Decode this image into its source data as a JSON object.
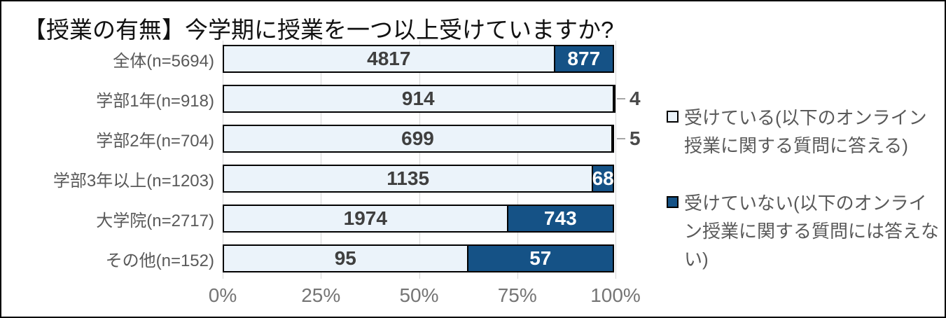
{
  "title": "【授業の有無】今学期に授業を一つ以上受けていますか?",
  "colors": {
    "light_fill": "#EBF3FA",
    "dark_fill": "#155286",
    "segment_border": "#000000",
    "gridline": "#D6D6D6",
    "category_text": "#595959",
    "axis_text": "#757575",
    "value_text_on_light": "#3F3F3F",
    "value_text_on_dark": "#FFFFFF"
  },
  "chart_data": {
    "type": "bar",
    "orientation": "horizontal",
    "stacking": "percent",
    "title": "【授業の有無】今学期に授業を一つ以上受けていますか?",
    "categories": [
      "全体(n=5694)",
      "学部1年(n=918)",
      "学部2年(n=704)",
      "学部3年以上(n=1203)",
      "大学院(n=2717)",
      "その他(n=152)"
    ],
    "series": [
      {
        "name": "受けている(以下のオンライン授業に関する質問に答える)",
        "values": [
          4817,
          914,
          699,
          1135,
          1974,
          95
        ]
      },
      {
        "name": "受けていない(以下のオンライン授業に関する質問には答えない)",
        "values": [
          877,
          4,
          5,
          68,
          743,
          57
        ]
      }
    ],
    "x_ticks": [
      "0%",
      "25%",
      "50%",
      "75%",
      "100%"
    ],
    "xlim": [
      0,
      100
    ],
    "grid": "vertical",
    "legend_position": "right",
    "outside_label_threshold_percent": 2
  }
}
